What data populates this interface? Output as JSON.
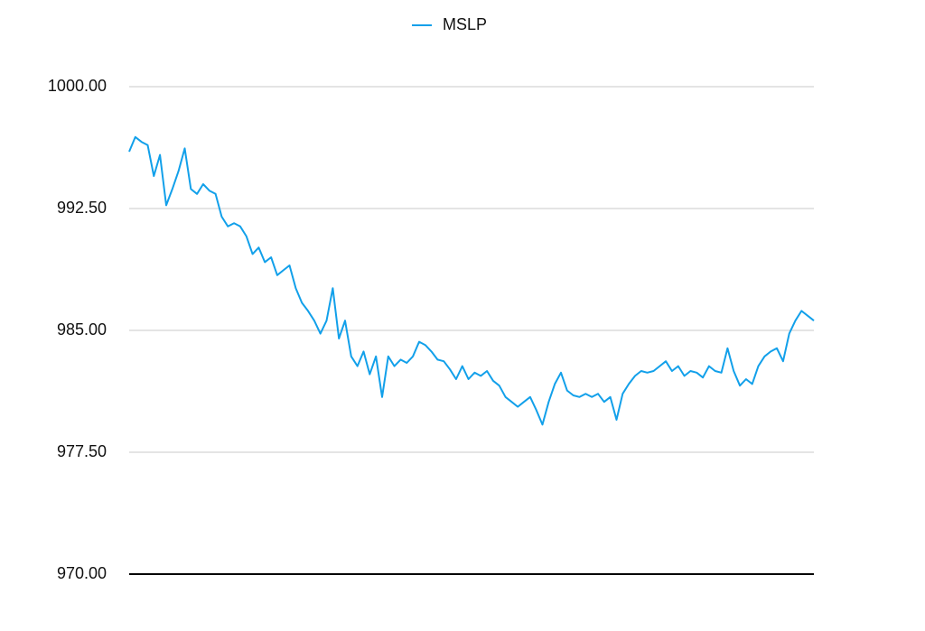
{
  "chart_data": {
    "type": "line",
    "series": [
      {
        "name": "MSLP",
        "color": "#12a0ea",
        "values": [
          996.0,
          996.9,
          996.6,
          996.4,
          994.5,
          995.8,
          992.7,
          993.7,
          994.8,
          996.2,
          993.7,
          993.4,
          994.0,
          993.6,
          993.4,
          992.0,
          991.4,
          991.6,
          991.4,
          990.8,
          989.7,
          990.1,
          989.2,
          989.5,
          988.4,
          988.7,
          989.0,
          987.6,
          986.7,
          986.2,
          985.6,
          984.8,
          985.6,
          987.6,
          984.5,
          985.6,
          983.4,
          982.8,
          983.7,
          982.3,
          983.4,
          980.9,
          983.4,
          982.8,
          983.2,
          983.0,
          983.4,
          984.3,
          984.1,
          983.7,
          983.2,
          983.1,
          982.6,
          982.0,
          982.8,
          982.0,
          982.4,
          982.2,
          982.5,
          981.9,
          981.6,
          980.9,
          980.6,
          980.3,
          980.6,
          980.9,
          980.1,
          979.2,
          980.6,
          981.7,
          982.4,
          981.3,
          981.0,
          980.9,
          981.1,
          980.9,
          981.1,
          980.6,
          980.9,
          979.5,
          981.1,
          981.7,
          982.2,
          982.5,
          982.4,
          982.5,
          982.8,
          983.1,
          982.5,
          982.8,
          982.2,
          982.5,
          982.4,
          982.1,
          982.8,
          982.5,
          982.4,
          983.9,
          982.5,
          981.6,
          982.0,
          981.7,
          982.8,
          983.4,
          983.7,
          983.9,
          983.1,
          984.8,
          985.6,
          986.2,
          985.9,
          985.6
        ]
      }
    ],
    "ylim": [
      970,
      1000
    ],
    "yticks": [
      {
        "value": 970,
        "label": "970.00"
      },
      {
        "value": 977.5,
        "label": "977.50"
      },
      {
        "value": 985,
        "label": "985.00"
      },
      {
        "value": 992.5,
        "label": "992.50"
      },
      {
        "value": 1000,
        "label": "1000.00"
      }
    ],
    "grid": true,
    "legend": "top"
  }
}
